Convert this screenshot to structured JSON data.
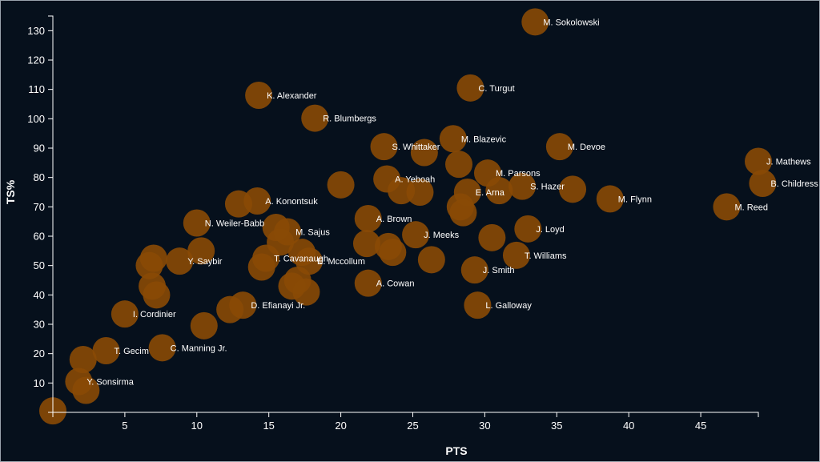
{
  "chart_data": {
    "type": "scatter",
    "title": "",
    "xlabel": "PTS",
    "ylabel": "TS%",
    "xlim": [
      0,
      49
    ],
    "ylim": [
      0,
      135
    ],
    "xticks": [
      5,
      10,
      15,
      20,
      25,
      30,
      35,
      40,
      45
    ],
    "yticks": [
      10,
      20,
      30,
      40,
      50,
      60,
      70,
      80,
      90,
      100,
      110,
      120,
      130
    ],
    "point_color": "#8a4a06",
    "background": "#06101c",
    "points": [
      {
        "x": 33.5,
        "y": 133,
        "label": "M. Sokolowski"
      },
      {
        "x": 29.0,
        "y": 110.5,
        "label": "C. Turgut"
      },
      {
        "x": 14.3,
        "y": 108,
        "label": "K. Alexander"
      },
      {
        "x": 18.2,
        "y": 100.2,
        "label": "R. Blumbergs"
      },
      {
        "x": 23.0,
        "y": 90.5,
        "label": "S. Whittaker"
      },
      {
        "x": 25.8,
        "y": 88.5,
        "label": ""
      },
      {
        "x": 27.8,
        "y": 93.2,
        "label": "M. Blazevic"
      },
      {
        "x": 35.2,
        "y": 90.5,
        "label": "M. Devoe"
      },
      {
        "x": 28.2,
        "y": 84.5,
        "label": ""
      },
      {
        "x": 30.2,
        "y": 81.5,
        "label": "M. Parsons"
      },
      {
        "x": 49.0,
        "y": 85.5,
        "label": "J. Mathews"
      },
      {
        "x": 49.3,
        "y": 78,
        "label": "B. Childress"
      },
      {
        "x": 23.2,
        "y": 79.5,
        "label": "A. Yeboah"
      },
      {
        "x": 20.0,
        "y": 77.5,
        "label": ""
      },
      {
        "x": 24.2,
        "y": 75.5,
        "label": ""
      },
      {
        "x": 25.5,
        "y": 75,
        "label": ""
      },
      {
        "x": 28.8,
        "y": 75,
        "label": "E. Arna"
      },
      {
        "x": 31.0,
        "y": 75.5,
        "label": ""
      },
      {
        "x": 32.6,
        "y": 77,
        "label": "S. Hazer"
      },
      {
        "x": 36.1,
        "y": 76,
        "label": ""
      },
      {
        "x": 38.7,
        "y": 72.7,
        "label": "M. Flynn"
      },
      {
        "x": 46.8,
        "y": 70,
        "label": "M. Reed"
      },
      {
        "x": 14.2,
        "y": 72,
        "label": "A. Konontsuk"
      },
      {
        "x": 12.9,
        "y": 71,
        "label": ""
      },
      {
        "x": 28.3,
        "y": 70,
        "label": ""
      },
      {
        "x": 28.5,
        "y": 68,
        "label": ""
      },
      {
        "x": 21.9,
        "y": 66,
        "label": "A. Brown"
      },
      {
        "x": 10.0,
        "y": 64.5,
        "label": "N. Weiler-Babb"
      },
      {
        "x": 15.5,
        "y": 63,
        "label": ""
      },
      {
        "x": 16.3,
        "y": 61.5,
        "label": "M. Sajus"
      },
      {
        "x": 25.2,
        "y": 60.5,
        "label": "J. Meeks"
      },
      {
        "x": 30.5,
        "y": 59.5,
        "label": ""
      },
      {
        "x": 33.0,
        "y": 62.5,
        "label": "J. Loyd"
      },
      {
        "x": 15.8,
        "y": 58,
        "label": ""
      },
      {
        "x": 21.8,
        "y": 57.5,
        "label": ""
      },
      {
        "x": 23.3,
        "y": 56.5,
        "label": ""
      },
      {
        "x": 23.6,
        "y": 54.5,
        "label": ""
      },
      {
        "x": 10.3,
        "y": 55,
        "label": ""
      },
      {
        "x": 17.3,
        "y": 54.5,
        "label": ""
      },
      {
        "x": 7.0,
        "y": 52.5,
        "label": ""
      },
      {
        "x": 8.8,
        "y": 51.5,
        "label": "Y. Saybir"
      },
      {
        "x": 14.8,
        "y": 52.5,
        "label": "T. Cavanaugh"
      },
      {
        "x": 17.8,
        "y": 51.5,
        "label": "E. Mccollum"
      },
      {
        "x": 26.3,
        "y": 52,
        "label": ""
      },
      {
        "x": 32.2,
        "y": 53.5,
        "label": "T. Williams"
      },
      {
        "x": 6.7,
        "y": 50,
        "label": ""
      },
      {
        "x": 14.5,
        "y": 49.5,
        "label": ""
      },
      {
        "x": 29.3,
        "y": 48.5,
        "label": "J. Smith"
      },
      {
        "x": 21.9,
        "y": 44,
        "label": "A. Cowan"
      },
      {
        "x": 16.6,
        "y": 43,
        "label": ""
      },
      {
        "x": 17.0,
        "y": 45,
        "label": ""
      },
      {
        "x": 6.9,
        "y": 43,
        "label": ""
      },
      {
        "x": 7.2,
        "y": 40,
        "label": ""
      },
      {
        "x": 17.6,
        "y": 41,
        "label": ""
      },
      {
        "x": 29.5,
        "y": 36.5,
        "label": "L. Galloway"
      },
      {
        "x": 12.3,
        "y": 35,
        "label": ""
      },
      {
        "x": 13.2,
        "y": 36.5,
        "label": "D. Efianayi Jr."
      },
      {
        "x": 5.0,
        "y": 33.5,
        "label": "I. Cordinier"
      },
      {
        "x": 10.5,
        "y": 29.5,
        "label": ""
      },
      {
        "x": 3.7,
        "y": 21,
        "label": "T. Gecim"
      },
      {
        "x": 7.6,
        "y": 22,
        "label": "C. Manning Jr."
      },
      {
        "x": 2.1,
        "y": 18,
        "label": ""
      },
      {
        "x": 1.8,
        "y": 10.5,
        "label": "Y. Sonsirma"
      },
      {
        "x": 2.3,
        "y": 7.5,
        "label": ""
      },
      {
        "x": 0.0,
        "y": 0.5,
        "label": ""
      }
    ]
  }
}
